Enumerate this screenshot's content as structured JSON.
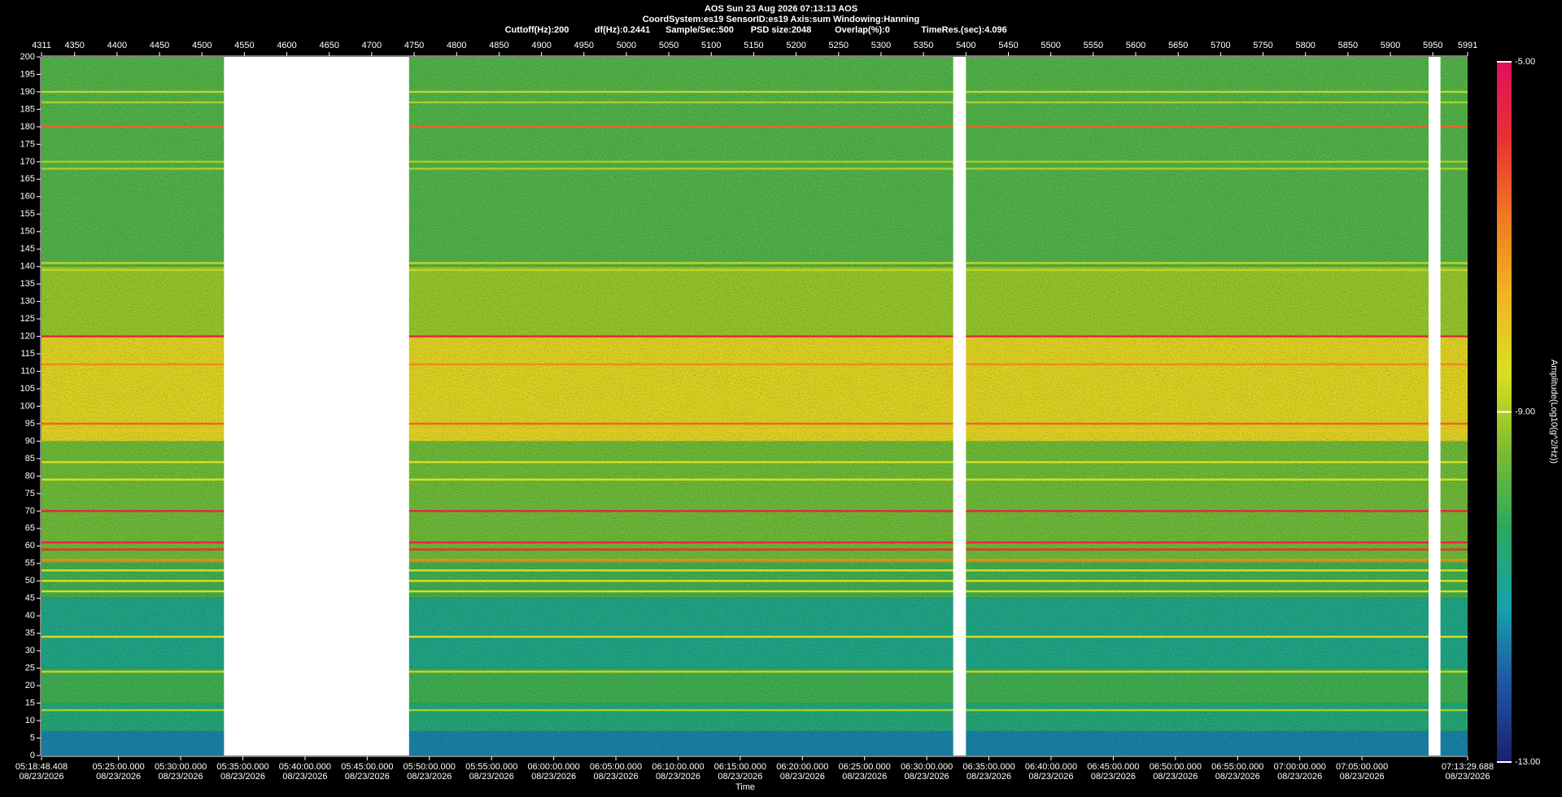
{
  "chart_data": {
    "type": "spectrogram",
    "title": "AOS  Sun 23 Aug 2026 07:13:13  AOS",
    "subtitle": "CoordSystem:es19   SensorID:es19    Axis:sum    Windowing:Hanning",
    "params": [
      "Cuttoff(Hz):200",
      "df(Hz):0.2441",
      "Sample/Sec:500",
      "PSD size:2048",
      "Overlap(%):0",
      "TimeRes.(sec):4.096"
    ],
    "xlabel": "Time",
    "colorbar_label": "Amplitude(Log10(g^2/Hz))",
    "xlim": [
      4311,
      5991
    ],
    "xticks": [
      4311,
      4350,
      4400,
      4450,
      4500,
      4550,
      4600,
      4650,
      4700,
      4750,
      4800,
      4850,
      4900,
      4950,
      5000,
      5050,
      5100,
      5150,
      5200,
      5250,
      5300,
      5350,
      5400,
      5450,
      5500,
      5550,
      5600,
      5650,
      5700,
      5750,
      5800,
      5850,
      5900,
      5950,
      5991
    ],
    "time_ticks": [
      {
        "value": 4311,
        "label": "05:18:48.408"
      },
      {
        "value": 4401.72,
        "label": "05:25:00.000"
      },
      {
        "value": 4474.96,
        "label": "05:30:00.000"
      },
      {
        "value": 4548.2,
        "label": "05:35:00.000"
      },
      {
        "value": 4621.44,
        "label": "05:40:00.000"
      },
      {
        "value": 4694.69,
        "label": "05:45:00.000"
      },
      {
        "value": 4767.93,
        "label": "05:50:00.000"
      },
      {
        "value": 4841.17,
        "label": "05:55:00.000"
      },
      {
        "value": 4914.41,
        "label": "06:00:00.000"
      },
      {
        "value": 4987.65,
        "label": "06:05:00.000"
      },
      {
        "value": 5060.89,
        "label": "06:10:00.000"
      },
      {
        "value": 5134.13,
        "label": "06:15:00.000"
      },
      {
        "value": 5207.37,
        "label": "06:20:00.000"
      },
      {
        "value": 5280.61,
        "label": "06:25:00.000"
      },
      {
        "value": 5353.85,
        "label": "06:30:00.000"
      },
      {
        "value": 5427.09,
        "label": "06:35:00.000"
      },
      {
        "value": 5500.33,
        "label": "06:40:00.000"
      },
      {
        "value": 5573.57,
        "label": "06:45:00.000"
      },
      {
        "value": 5646.81,
        "label": "06:50:00.000"
      },
      {
        "value": 5720.05,
        "label": "06:55:00.000"
      },
      {
        "value": 5793.29,
        "label": "07:00:00.000"
      },
      {
        "value": 5866.54,
        "label": "07:05:00.000"
      },
      {
        "value": 5991,
        "label": "07:13:29.688"
      }
    ],
    "time_tick_dates": [
      "08/23/2026",
      "08/23/2026",
      "08/23/2026",
      "08/23/2026",
      "08/23/2026",
      "08/23/2026",
      "08/23/2026",
      "08/23/2026",
      "08/23/2026",
      "08/23/2026",
      "08/23/2026",
      "08/23/2026",
      "08/23/2026",
      "08/23/2026",
      "08/23/2026",
      "08/23/2026",
      "08/23/2026",
      "08/23/2026",
      "08/23/2026",
      "08/23/2026",
      "08/23/2026",
      "08/23/2026",
      "08/23/2026"
    ],
    "ylim": [
      0,
      200
    ],
    "yticks": [
      0,
      5,
      10,
      15,
      20,
      25,
      30,
      35,
      40,
      45,
      50,
      55,
      60,
      65,
      70,
      75,
      80,
      85,
      90,
      95,
      100,
      105,
      110,
      115,
      120,
      125,
      130,
      135,
      140,
      145,
      150,
      155,
      160,
      165,
      170,
      175,
      180,
      185,
      190,
      195,
      200
    ],
    "clim": [
      -13,
      -5
    ],
    "cticks": [
      {
        "value": -5,
        "label": "-5.00"
      },
      {
        "value": -9,
        "label": "-9.00"
      },
      {
        "value": -13,
        "label": "-13.00"
      }
    ],
    "colormap": [
      "#1c1f6e",
      "#1f55a4",
      "#17a2aa",
      "#2aa85e",
      "#7cbc30",
      "#d8e022",
      "#f2b324",
      "#f07a20",
      "#e83232",
      "#e0105a"
    ],
    "bands": [
      {
        "from": 0,
        "to": 7,
        "amplitude": -11.6
      },
      {
        "from": 7,
        "to": 15,
        "amplitude": -10.6
      },
      {
        "from": 15,
        "to": 25,
        "amplitude": -10.1
      },
      {
        "from": 25,
        "to": 45,
        "amplitude": -10.8
      },
      {
        "from": 45,
        "to": 55,
        "amplitude": -10.1
      },
      {
        "from": 55,
        "to": 90,
        "amplitude": -9.6
      },
      {
        "from": 90,
        "to": 120,
        "amplitude": -8.3
      },
      {
        "from": 120,
        "to": 140,
        "amplitude": -9.2
      },
      {
        "from": 140,
        "to": 200,
        "amplitude": -9.9
      }
    ],
    "lines": [
      {
        "freq": 190,
        "amplitude": -8.8
      },
      {
        "freq": 187,
        "amplitude": -9
      },
      {
        "freq": 180,
        "amplitude": -6.5
      },
      {
        "freq": 170,
        "amplitude": -9
      },
      {
        "freq": 168,
        "amplitude": -9
      },
      {
        "freq": 141,
        "amplitude": -8.8
      },
      {
        "freq": 139,
        "amplitude": -8.8
      },
      {
        "freq": 120,
        "amplitude": -5.5
      },
      {
        "freq": 112,
        "amplitude": -7
      },
      {
        "freq": 95,
        "amplitude": -6.5
      },
      {
        "freq": 93,
        "amplitude": -8
      },
      {
        "freq": 84,
        "amplitude": -8.5
      },
      {
        "freq": 79,
        "amplitude": -8.5
      },
      {
        "freq": 70,
        "amplitude": -5.5
      },
      {
        "freq": 61,
        "amplitude": -5.5
      },
      {
        "freq": 59,
        "amplitude": -5.8
      },
      {
        "freq": 56,
        "amplitude": -7
      },
      {
        "freq": 53,
        "amplitude": -8.5
      },
      {
        "freq": 50,
        "amplitude": -8.5
      },
      {
        "freq": 47,
        "amplitude": -8.5
      },
      {
        "freq": 34,
        "amplitude": -8.5
      },
      {
        "freq": 24,
        "amplitude": -8.8
      },
      {
        "freq": 13,
        "amplitude": -9
      }
    ],
    "gaps": [
      [
        4526,
        4744
      ],
      [
        5385,
        5400
      ],
      [
        5945,
        5959
      ]
    ]
  }
}
